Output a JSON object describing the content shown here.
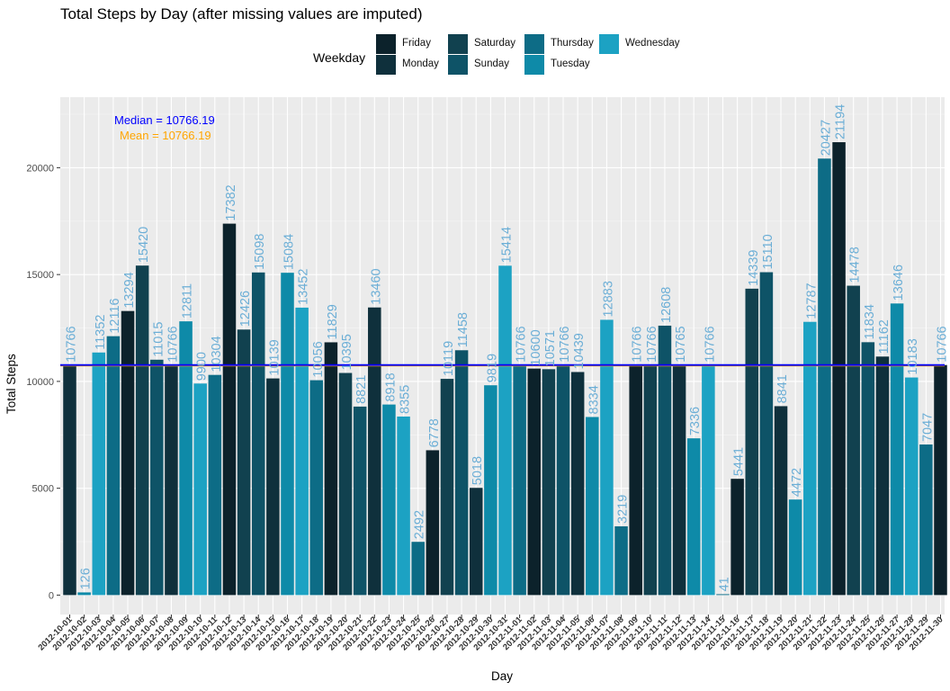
{
  "chart_data": {
    "type": "bar",
    "title": "Total Steps by Day (after missing values are imputed)",
    "xlabel": "Day",
    "ylabel": "Total Steps",
    "ylim": [
      0,
      22000
    ],
    "yticks": [
      0,
      5000,
      10000,
      15000,
      20000
    ],
    "legend_title": "Weekday",
    "legend_position": "top",
    "grid": true,
    "weekday_colors": {
      "Friday": "#0c222b",
      "Monday": "#0f303c",
      "Saturday": "#11414f",
      "Sunday": "#0e5367",
      "Thursday": "#0d6c86",
      "Tuesday": "#0e8aa8",
      "Wednesday": "#1ca2c3"
    },
    "legend_order": [
      "Friday",
      "Monday",
      "Saturday",
      "Sunday",
      "Thursday",
      "Tuesday",
      "Wednesday"
    ],
    "categories": [
      "2012-10-01",
      "2012-10-02",
      "2012-10-03",
      "2012-10-04",
      "2012-10-05",
      "2012-10-06",
      "2012-10-07",
      "2012-10-08",
      "2012-10-09",
      "2012-10-10",
      "2012-10-11",
      "2012-10-12",
      "2012-10-13",
      "2012-10-14",
      "2012-10-15",
      "2012-10-16",
      "2012-10-17",
      "2012-10-18",
      "2012-10-19",
      "2012-10-20",
      "2012-10-21",
      "2012-10-22",
      "2012-10-23",
      "2012-10-24",
      "2012-10-25",
      "2012-10-26",
      "2012-10-27",
      "2012-10-28",
      "2012-10-29",
      "2012-10-30",
      "2012-10-31",
      "2012-11-01",
      "2012-11-02",
      "2012-11-03",
      "2012-11-04",
      "2012-11-05",
      "2012-11-06",
      "2012-11-07",
      "2012-11-08",
      "2012-11-09",
      "2012-11-10",
      "2012-11-11",
      "2012-11-12",
      "2012-11-13",
      "2012-11-14",
      "2012-11-15",
      "2012-11-16",
      "2012-11-17",
      "2012-11-18",
      "2012-11-19",
      "2012-11-20",
      "2012-11-21",
      "2012-11-22",
      "2012-11-23",
      "2012-11-24",
      "2012-11-25",
      "2012-11-26",
      "2012-11-27",
      "2012-11-28",
      "2012-11-29",
      "2012-11-30"
    ],
    "values": [
      10766,
      126,
      11352,
      12116,
      13294,
      15420,
      11015,
      10766,
      12811,
      9900,
      10304,
      17382,
      12426,
      15098,
      10139,
      15084,
      13452,
      10056,
      11829,
      10395,
      8821,
      13460,
      8918,
      8355,
      2492,
      6778,
      10119,
      11458,
      5018,
      9819,
      15414,
      10766,
      10600,
      10571,
      10766,
      10439,
      8334,
      12883,
      3219,
      10766,
      10766,
      12608,
      10765,
      7336,
      10766,
      41,
      5441,
      14339,
      15110,
      8841,
      4472,
      12787,
      20427,
      21194,
      14478,
      11834,
      11162,
      13646,
      10183,
      7047,
      10766
    ],
    "median": 10766.19,
    "mean": 10766.19,
    "median_label": "Median = 10766.19",
    "mean_label": "Mean = 10766.19",
    "median_color": "#0000ff",
    "mean_color": "#ffa500",
    "value_label_color": "#6baed6"
  }
}
